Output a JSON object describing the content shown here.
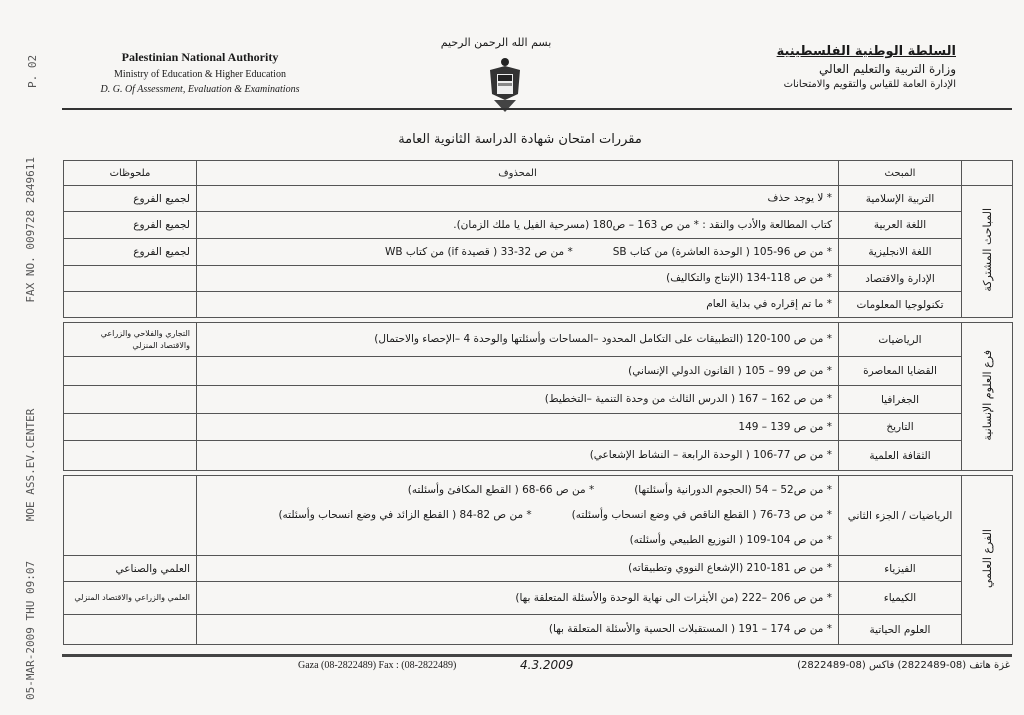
{
  "fax_header": {
    "page": "P. 02",
    "line": "05-MAR-2009 THU 09:07      MOE ASS.EV.CENTER                FAX NO. 009728 2849611"
  },
  "header": {
    "en": {
      "authority": "Palestinian National Authority",
      "ministry": "Ministry of Education & Higher Education",
      "directorate": "D. G. Of Assessment, Evaluation  & Examinations"
    },
    "ar": {
      "authority": "السلطة الوطنية الفلسطينية",
      "ministry": "وزارة التربية والتعليم العالي",
      "directorate": "الإدارة العامة للقياس والتقويم والامتحانات"
    },
    "basmala": "بسم الله الرحمن الرحيم"
  },
  "title": "مقررات امتحان شهادة الدراسة الثانوية العامة",
  "columns": {
    "subject": "المبحث",
    "deleted": "المحذوف",
    "notes": "ملحوظات"
  },
  "sections": [
    {
      "group": "المباحث المشتركة",
      "rows": [
        {
          "subject": "التربية الإسلامية",
          "lines": [
            [
              "* لا يوجد حذف"
            ]
          ],
          "notes": "لجميع الفروع"
        },
        {
          "subject": "اللغة العربية",
          "lines": [
            [
              "كتاب المطالعة والأدب والنقد : * من ص 163 – ص180  (مسرحية الفيل يا ملك الزمان)."
            ]
          ],
          "notes": "لجميع الفروع"
        },
        {
          "subject": "اللغة الانجليزية",
          "lines": [
            [
              "* من ص 96-105 ( الوحدة العاشرة) من كتاب SB",
              "* من ص 32-33 ( قصيدة if) من كتاب WB"
            ]
          ],
          "notes": "لجميع الفروع"
        },
        {
          "subject": "الإدارة والاقتصاد",
          "lines": [
            [
              "* من ص 118-134 (الإنتاج والتكاليف)"
            ]
          ],
          "notes": ""
        },
        {
          "subject": "تكنولوجيا المعلومات",
          "lines": [
            [
              "* ما تم إقراره في بداية العام"
            ]
          ],
          "notes": ""
        }
      ]
    },
    {
      "group": "فرع العلوم الإنسانية",
      "rows": [
        {
          "subject": "الرياضيات",
          "lines": [
            [
              "* من ص 100-120 (التطبيقات على التكامل المحدود –المساحات وأسئلتها والوحدة 4 –الإحصاء والاحتمال)"
            ]
          ],
          "notes": "التجاري والفلاحي والزراعي والاقتصاد المنزلي"
        },
        {
          "subject": "القضايا المعاصرة",
          "lines": [
            [
              "* من ص 99 – 105 ( القانون الدولي الإنساني)"
            ]
          ],
          "notes": ""
        },
        {
          "subject": "الجغرافيا",
          "lines": [
            [
              "* من ص 162 – 167 ( الدرس الثالث من وحدة التنمية –التخطيط)"
            ]
          ],
          "notes": ""
        },
        {
          "subject": "التاريخ",
          "lines": [
            [
              "* من ص 139 – 149"
            ]
          ],
          "notes": ""
        },
        {
          "subject": "الثقافة العلمية",
          "lines": [
            [
              "* من ص 77-106 ( الوحدة الرابعة – النشاط الإشعاعي)"
            ]
          ],
          "notes": ""
        }
      ]
    },
    {
      "group": "الفرع العلمي",
      "rows": [
        {
          "subject": "الرياضيات / الجزء الثاني",
          "lines": [
            [
              "* من ص52 – 54 (الحجوم الدورانية وأسئلتها)",
              "* من ص 66-68 ( القطع المكافئ وأسئلته)"
            ],
            [
              "* من ص 73-76 ( القطع الناقص في وضع انسحاب وأسئلته)",
              "* من ص 82-84 ( القطع الزائد في وضع انسحاب وأسئلته)"
            ],
            [
              "* من ص 104-109 ( التوزيع الطبيعي وأسئلته)"
            ]
          ],
          "notes": ""
        },
        {
          "subject": "الفيزياء",
          "lines": [
            [
              "* من ص 181-210 (الإشعاع النووي وتطبيقاته)"
            ]
          ],
          "notes": "العلمي والصناعي"
        },
        {
          "subject": "الكيمياء",
          "lines": [
            [
              "* من ص 206 –222 (من الأيثرات الى نهاية الوحدة والأسئلة المتعلقة بها)"
            ]
          ],
          "notes": "العلمي والزراعي والاقتصاد المنزلي"
        },
        {
          "subject": "العلوم الحياتية",
          "lines": [
            [
              "* من ص 174 – 191 ( المستقبلات الحسية والأسئلة المتعلقة بها)"
            ]
          ],
          "notes": ""
        }
      ]
    }
  ],
  "footer": {
    "en": "Gaza (08-2822489) Fax : (08-2822489)",
    "ar": "غزة هاتف (08-2822489) فاكس (08-2822489)",
    "handwritten_date": "4.3.2009"
  }
}
